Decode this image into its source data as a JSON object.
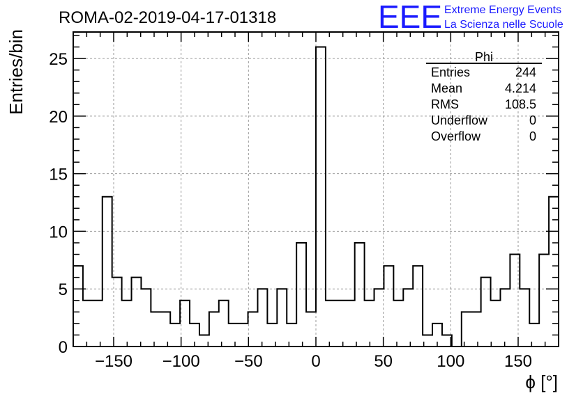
{
  "chart_data": {
    "type": "histogram",
    "title": "ROMA-02-2019-04-17-01318",
    "xlabel": "ϕ [°]",
    "ylabel": "Entries/bin",
    "xlim": [
      -180,
      180
    ],
    "ylim": [
      0,
      27.3
    ],
    "grid": true,
    "bin_width": 7.2,
    "x_ticks": [
      -150,
      -100,
      -50,
      0,
      50,
      100,
      150
    ],
    "y_ticks": [
      0,
      5,
      10,
      15,
      20,
      25
    ],
    "counts": [
      7,
      4,
      4,
      13,
      6,
      4,
      6,
      5,
      3,
      3,
      2,
      4,
      2,
      1,
      3,
      4,
      2,
      2,
      3,
      5,
      2,
      5,
      2,
      9,
      3,
      26,
      4,
      4,
      4,
      9,
      4,
      5,
      7,
      4,
      5,
      7,
      1,
      2,
      1,
      0,
      3,
      3,
      6,
      4,
      5,
      8,
      5,
      2,
      8,
      13
    ],
    "stats": {
      "title": "Phi",
      "rows": [
        {
          "label": "Entries",
          "value": "244"
        },
        {
          "label": "Mean",
          "value": "4.214"
        },
        {
          "label": "RMS",
          "value": "108.5"
        },
        {
          "label": "Underflow",
          "value": "0"
        },
        {
          "label": "Overflow",
          "value": "0"
        }
      ]
    }
  },
  "logo": {
    "text": "EEE",
    "line1": "Extreme Energy Events",
    "line2": "La Scienza nelle Scuole",
    "color": "#1a1aff"
  }
}
